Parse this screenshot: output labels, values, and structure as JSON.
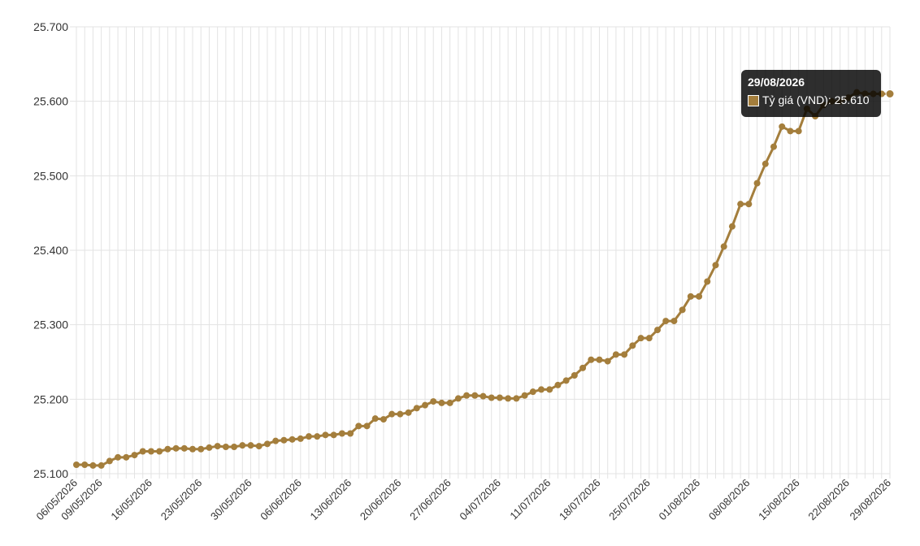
{
  "chart_data": {
    "type": "line",
    "title": "",
    "xlabel": "",
    "ylabel": "",
    "ylim": [
      25100,
      25700
    ],
    "y_ticks": [
      "25.100",
      "25.200",
      "25.300",
      "25.400",
      "25.500",
      "25.600",
      "25.700"
    ],
    "y_tick_values": [
      25100,
      25200,
      25300,
      25400,
      25500,
      25600,
      25700
    ],
    "x_tick_labels": [
      "06/05/2026",
      "09/05/2026",
      "16/05/2026",
      "23/05/2026",
      "30/05/2026",
      "06/06/2026",
      "13/06/2026",
      "20/06/2026",
      "27/06/2026",
      "04/07/2026",
      "11/07/2026",
      "18/07/2026",
      "25/07/2026",
      "01/08/2026",
      "08/08/2026",
      "15/08/2026",
      "22/08/2026",
      "29/08/2026"
    ],
    "grid": true,
    "series": [
      {
        "name": "Tỷ giá (VND)",
        "color": "#a47e3c",
        "values": [
          25112,
          25112,
          25111,
          25111,
          25117,
          25122,
          25122,
          25125,
          25130,
          25130,
          25130,
          25133,
          25134,
          25134,
          25133,
          25133,
          25135,
          25137,
          25136,
          25136,
          25138,
          25138,
          25137,
          25140,
          25144,
          25145,
          25146,
          25147,
          25150,
          25150,
          25152,
          25152,
          25154,
          25154,
          25164,
          25164,
          25174,
          25173,
          25180,
          25180,
          25182,
          25188,
          25192,
          25197,
          25195,
          25195,
          25201,
          25205,
          25205,
          25204,
          25202,
          25202,
          25201,
          25201,
          25205,
          25210,
          25213,
          25213,
          25219,
          25225,
          25232,
          25242,
          25253,
          25253,
          25251,
          25260,
          25260,
          25272,
          25282,
          25282,
          25293,
          25305,
          25305,
          25320,
          25338,
          25338,
          25358,
          25380,
          25405,
          25432,
          25462,
          25462,
          25490,
          25516,
          25539,
          25566,
          25560,
          25560,
          25590,
          25580,
          25595,
          25600,
          25600,
          25605,
          25612,
          25610,
          25610,
          25610,
          25610
        ]
      }
    ],
    "tooltip": {
      "title": "29/08/2026",
      "label": "Tỷ giá (VND): 25.610"
    }
  },
  "colors": {
    "line": "#a47e3c",
    "grid": "#e3e3e3",
    "tooltip_bg": "#1e1e1e"
  }
}
